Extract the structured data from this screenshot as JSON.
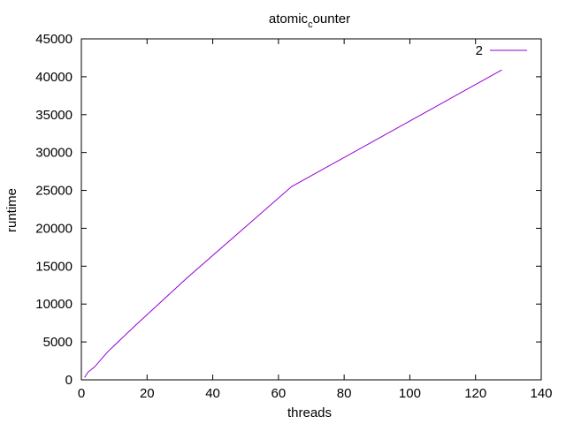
{
  "chart_data": {
    "type": "line",
    "title": {
      "main": "atomic",
      "subscript": "c",
      "rest": "ounter"
    },
    "xlabel": "threads",
    "ylabel": "runtime",
    "xlim": [
      0,
      140
    ],
    "ylim": [
      0,
      45000
    ],
    "xticks": [
      0,
      20,
      40,
      60,
      80,
      100,
      120,
      140
    ],
    "yticks": [
      0,
      5000,
      10000,
      15000,
      20000,
      25000,
      30000,
      35000,
      40000,
      45000
    ],
    "grid": false,
    "legend_position": "top-right",
    "series": [
      {
        "name": "2",
        "color": "#9400d3",
        "x": [
          1,
          2,
          4,
          8,
          16,
          32,
          64,
          128
        ],
        "y": [
          300,
          1000,
          1700,
          3700,
          7000,
          13400,
          25500,
          40900
        ]
      }
    ]
  }
}
